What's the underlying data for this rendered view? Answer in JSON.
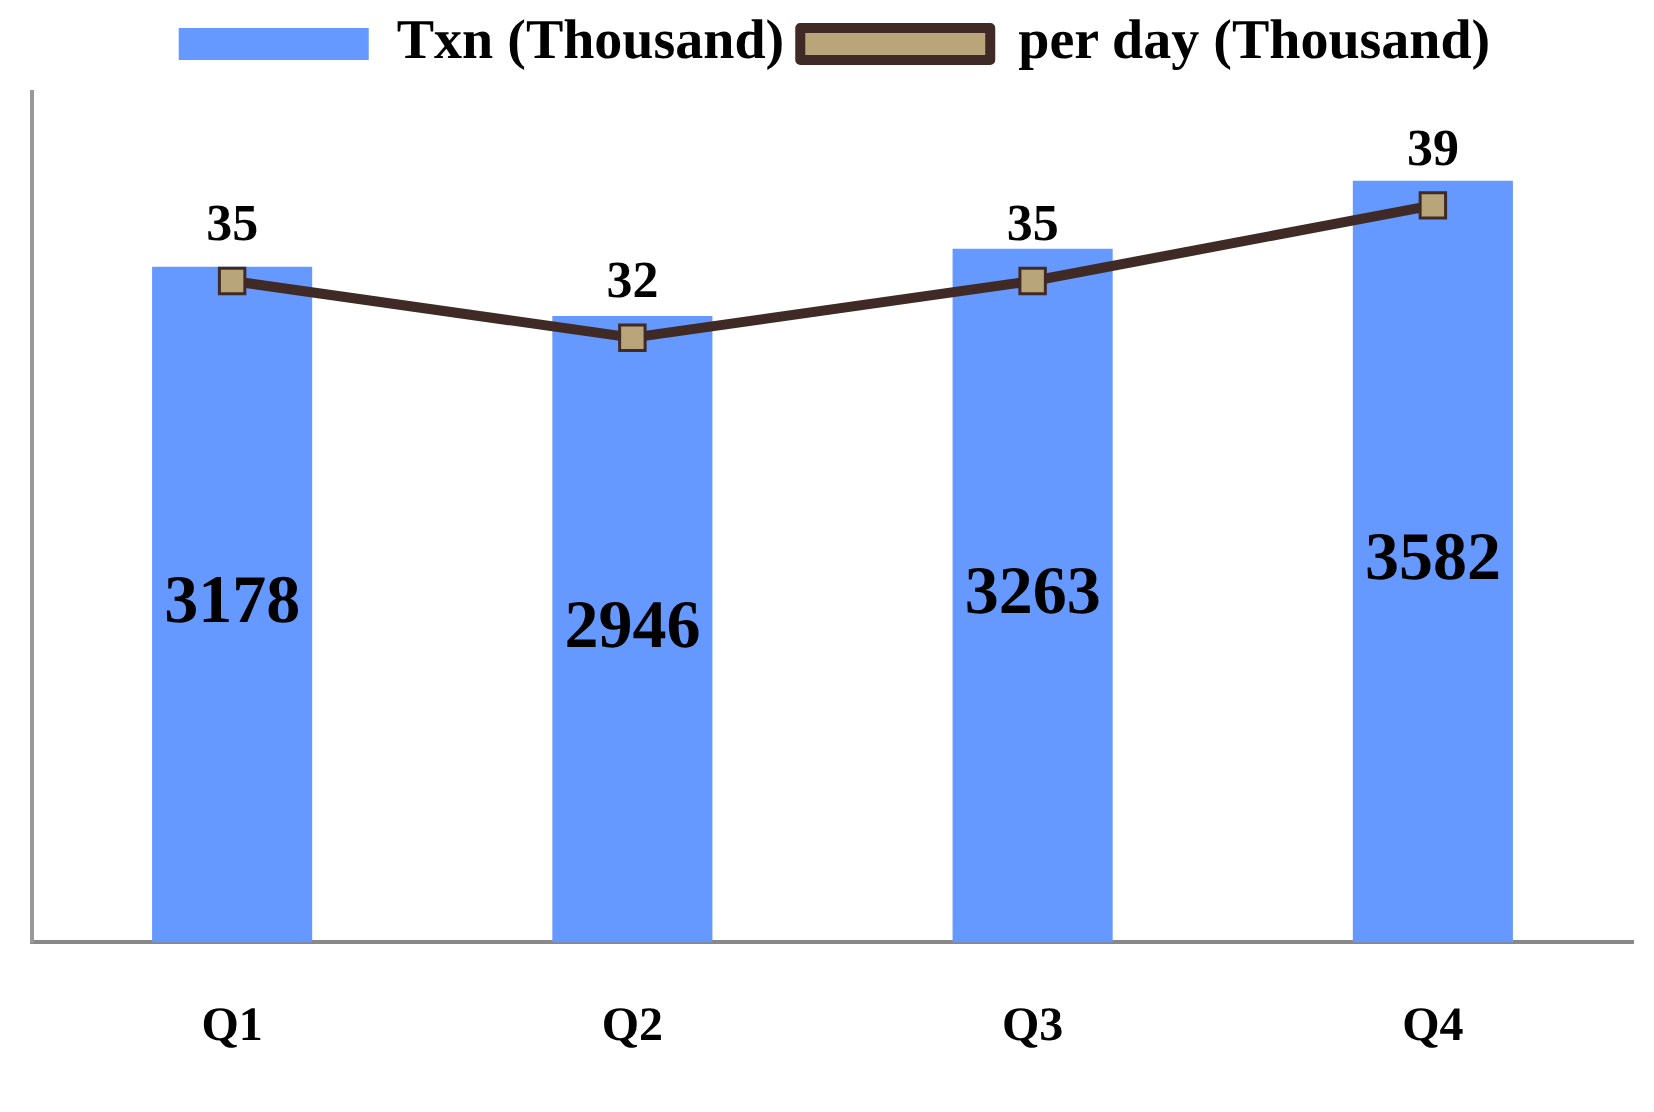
{
  "chart_data": {
    "type": "bar",
    "categories": [
      "Q1",
      "Q2",
      "Q3",
      "Q4"
    ],
    "series": [
      {
        "name": "Txn (Thousand)",
        "color": "#6699ff",
        "values": [
          3178,
          2946,
          3263,
          3582
        ]
      },
      {
        "name": "per day (Thousand)",
        "type": "line",
        "axis": "y2",
        "color": "#3f2a26",
        "marker": "square",
        "values": [
          35,
          32,
          35,
          39
        ]
      }
    ],
    "ylim": [
      0,
      4000
    ],
    "y2lim": [
      0,
      45
    ],
    "tick_labels": "x",
    "data_labels": true,
    "grid": false,
    "legend": "top"
  }
}
